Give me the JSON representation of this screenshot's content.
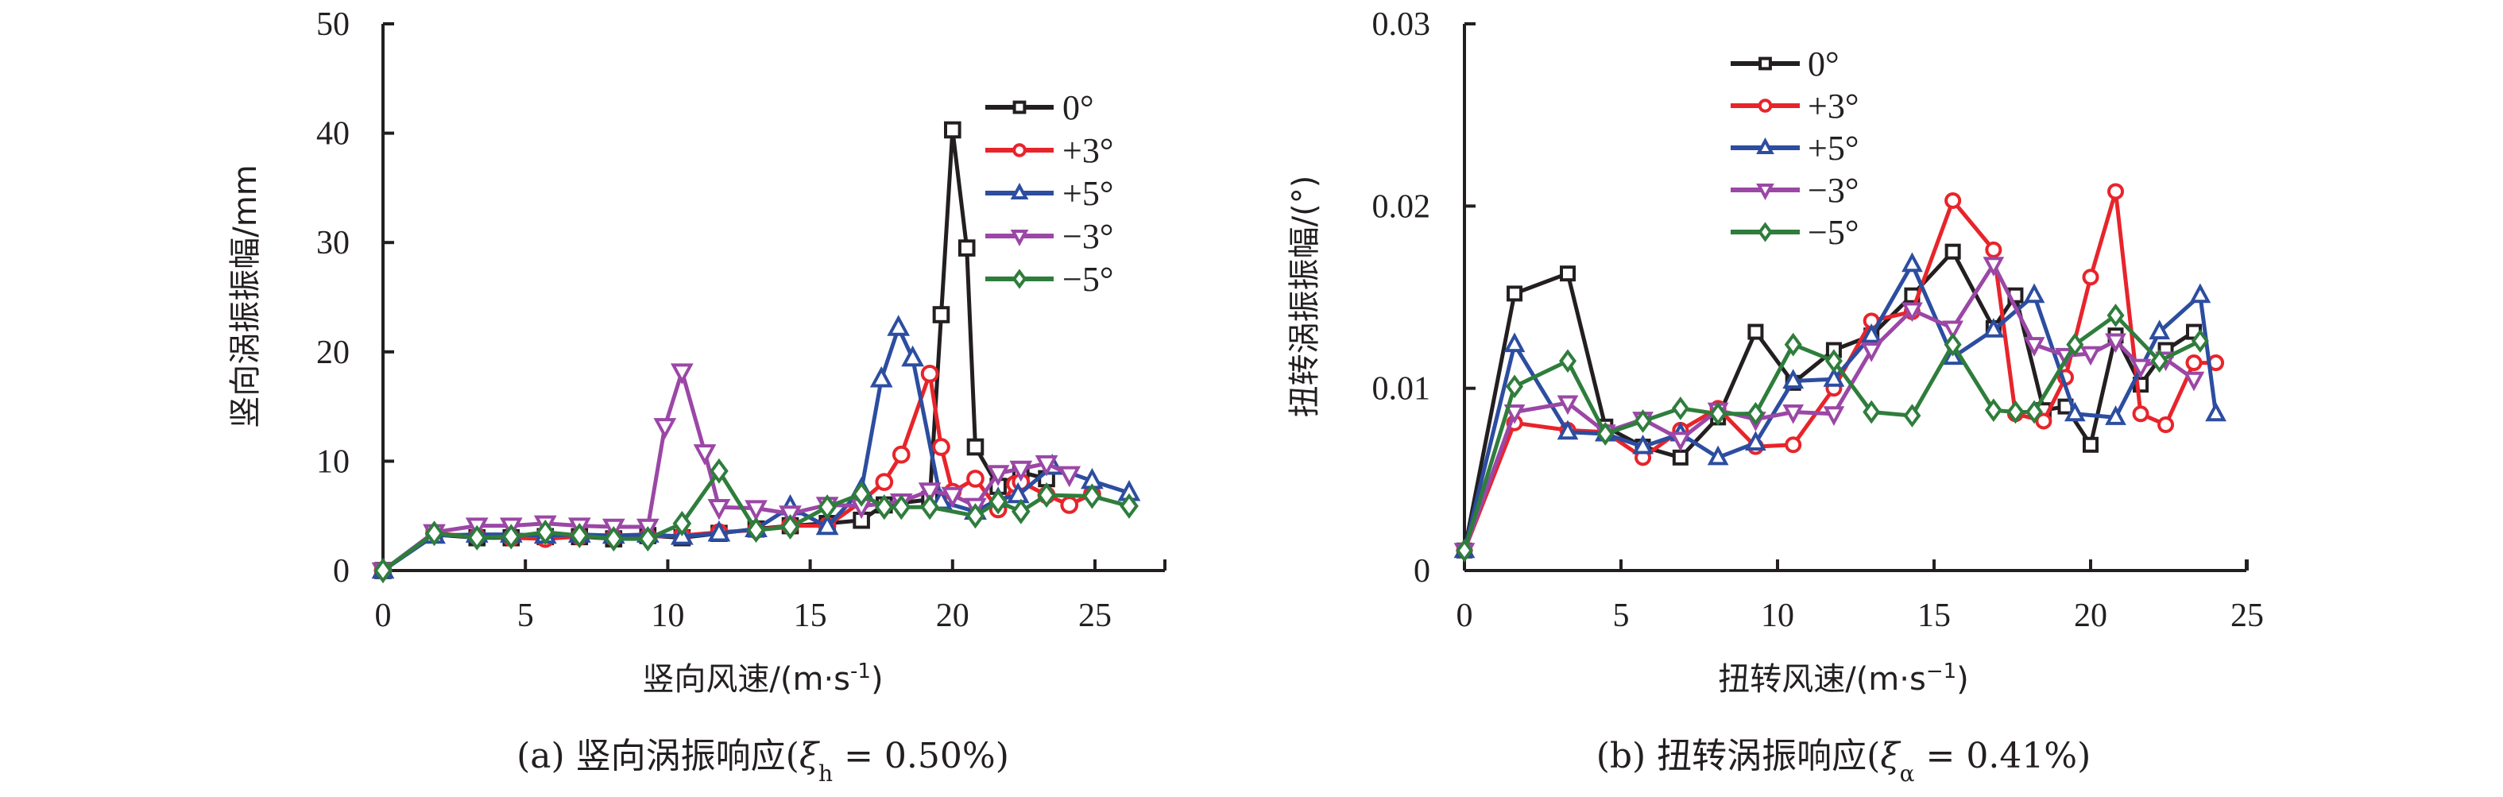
{
  "chart_data": [
    {
      "type": "line",
      "id": "vertical",
      "title": "",
      "caption": {
        "prefix": "(a) 竖向涡振响应(",
        "symbol": "ξ",
        "subscript": "h",
        "suffix": " = 0.50%)"
      },
      "xlabel": "竖向风速/(m·s",
      "xlabel_sup": "-1",
      "xlabel_close": ")",
      "ylabel": "竖向涡振振幅/mm",
      "xlim": [
        0,
        27.5
      ],
      "ylim": [
        0,
        50
      ],
      "xticks": [
        0,
        5,
        10,
        15,
        20,
        25
      ],
      "xtick_labels": [
        "0",
        "5",
        "10",
        "15",
        "20",
        "25"
      ],
      "yticks": [
        0,
        10,
        20,
        30,
        40,
        50
      ],
      "ytick_labels": [
        "0",
        "10",
        "20",
        "30",
        "40",
        "50"
      ],
      "grid": false,
      "legend_position": "upper-right",
      "series": [
        {
          "name": "0°",
          "color": "#231f20",
          "marker": "square",
          "x": [
            0,
            1.8,
            3.3,
            4.5,
            5.7,
            6.9,
            8.1,
            9.3,
            10.5,
            11.8,
            13.1,
            14.3,
            15.6,
            16.8,
            17.6,
            19.2,
            19.6,
            20.0,
            20.5,
            20.8,
            21.6,
            22.4,
            23.3
          ],
          "y": [
            0,
            3.3,
            3.0,
            3.0,
            3.1,
            3.1,
            2.9,
            3.2,
            3.0,
            3.4,
            3.8,
            4.1,
            4.3,
            4.6,
            6.0,
            6.5,
            23.4,
            40.3,
            29.5,
            11.3,
            7.7,
            9.0,
            8.4
          ]
        },
        {
          "name": "+3°",
          "color": "#e8242b",
          "marker": "circle",
          "x": [
            0,
            1.8,
            3.3,
            4.5,
            5.7,
            6.9,
            8.1,
            9.3,
            10.5,
            11.8,
            13.1,
            14.3,
            15.6,
            16.8,
            17.6,
            18.2,
            19.2,
            19.6,
            20.0,
            20.8,
            21.6,
            22.2,
            22.4,
            23.3,
            24.1,
            24.9
          ],
          "y": [
            0,
            3.4,
            3.1,
            3.0,
            2.9,
            3.1,
            3.0,
            3.1,
            3.2,
            3.5,
            3.7,
            4.1,
            4.1,
            6.3,
            8.1,
            10.6,
            18.0,
            11.3,
            7.2,
            8.4,
            5.6,
            7.9,
            8.1,
            6.9,
            6.0,
            7.0
          ]
        },
        {
          "name": "+5°",
          "color": "#2c4da0",
          "marker": "triangle-up",
          "x": [
            0,
            1.8,
            3.3,
            4.5,
            5.7,
            6.9,
            8.1,
            9.3,
            10.5,
            11.8,
            13.1,
            14.3,
            15.6,
            16.8,
            17.5,
            18.1,
            18.6,
            19.6,
            20.8,
            21.6,
            22.3,
            23.5,
            24.9,
            26.2
          ],
          "y": [
            0,
            3.2,
            3.3,
            3.3,
            3.2,
            3.3,
            3.2,
            3.3,
            3.1,
            3.4,
            3.8,
            5.8,
            4.0,
            7.4,
            17.5,
            22.2,
            19.4,
            6.3,
            5.4,
            6.5,
            6.9,
            9.5,
            8.2,
            7.1
          ]
        },
        {
          "name": "−3°",
          "color": "#9b47a6",
          "marker": "triangle-down",
          "x": [
            0,
            1.8,
            3.3,
            4.5,
            5.7,
            6.9,
            8.1,
            9.3,
            9.9,
            10.5,
            11.3,
            11.8,
            13.1,
            14.3,
            15.6,
            16.8,
            18.2,
            19.2,
            20.0,
            20.8,
            21.6,
            22.4,
            23.3,
            24.1
          ],
          "y": [
            0,
            3.5,
            4.1,
            4.1,
            4.3,
            4.1,
            4.0,
            4.0,
            13.2,
            18.2,
            10.8,
            5.8,
            5.7,
            5.2,
            6.0,
            5.9,
            6.3,
            7.3,
            6.9,
            5.9,
            8.9,
            9.3,
            9.8,
            8.8
          ]
        },
        {
          "name": "−5°",
          "color": "#2f7d3c",
          "marker": "diamond",
          "x": [
            0,
            1.8,
            3.3,
            4.5,
            5.7,
            6.9,
            8.1,
            9.3,
            10.5,
            11.8,
            13.1,
            14.3,
            15.6,
            16.8,
            17.6,
            18.2,
            19.2,
            20.8,
            21.6,
            22.4,
            23.3,
            24.9,
            26.2
          ],
          "y": [
            0,
            3.4,
            3.0,
            3.1,
            3.5,
            3.2,
            2.9,
            2.9,
            4.3,
            9.1,
            3.7,
            4.0,
            5.8,
            7.0,
            5.8,
            5.8,
            5.8,
            5.0,
            6.3,
            5.4,
            6.9,
            6.8,
            5.9
          ]
        }
      ]
    },
    {
      "type": "line",
      "id": "torsional",
      "title": "",
      "caption": {
        "prefix": "(b) 扭转涡振响应(",
        "symbol": "ξ",
        "subscript": "α",
        "suffix": " = 0.41%)"
      },
      "xlabel": "扭转风速/(m·s",
      "xlabel_sup": "−1",
      "xlabel_close": ")",
      "ylabel": "扭转涡振振幅/(°)",
      "xlim": [
        0,
        25
      ],
      "ylim": [
        0,
        0.03
      ],
      "xticks": [
        0,
        5,
        10,
        15,
        20,
        25
      ],
      "xtick_labels": [
        "0",
        "5",
        "10",
        "15",
        "20",
        "25"
      ],
      "yticks": [
        0,
        0.01,
        0.02,
        0.03
      ],
      "ytick_labels": [
        "0",
        "0.01",
        "0.02",
        "0.03"
      ],
      "grid": false,
      "legend_position": "upper-center",
      "series": [
        {
          "name": "0°",
          "color": "#231f20",
          "marker": "square",
          "x": [
            0,
            1.6,
            3.3,
            4.5,
            5.7,
            6.9,
            8.1,
            9.3,
            10.5,
            11.8,
            13.0,
            14.3,
            15.6,
            16.9,
            17.6,
            18.5,
            19.2,
            20.0,
            20.8,
            21.6,
            22.4,
            23.3
          ],
          "y": [
            0.0011,
            0.0152,
            0.0163,
            0.0079,
            0.0068,
            0.0062,
            0.0084,
            0.0131,
            0.0103,
            0.0121,
            0.0129,
            0.0151,
            0.0175,
            0.0133,
            0.0151,
            0.0088,
            0.009,
            0.0069,
            0.0129,
            0.0102,
            0.0121,
            0.0131
          ]
        },
        {
          "name": "+3°",
          "color": "#e8242b",
          "marker": "circle",
          "x": [
            0,
            1.6,
            3.3,
            4.5,
            5.7,
            6.9,
            8.1,
            9.3,
            10.5,
            11.8,
            13.0,
            14.3,
            15.6,
            16.9,
            17.6,
            18.5,
            19.2,
            20.0,
            20.8,
            21.6,
            22.4,
            23.3,
            24.0
          ],
          "y": [
            0.0011,
            0.0081,
            0.0077,
            0.0076,
            0.0062,
            0.0077,
            0.0089,
            0.0068,
            0.0069,
            0.01,
            0.0137,
            0.0142,
            0.0203,
            0.0176,
            0.0086,
            0.0082,
            0.0106,
            0.0161,
            0.0208,
            0.0086,
            0.008,
            0.0114,
            0.0114
          ]
        },
        {
          "name": "+5°",
          "color": "#2c4da0",
          "marker": "triangle-up",
          "x": [
            0,
            1.6,
            3.3,
            4.5,
            5.7,
            6.9,
            8.1,
            9.3,
            10.5,
            11.8,
            13.0,
            14.3,
            15.6,
            16.9,
            18.2,
            19.5,
            20.8,
            22.2,
            23.5,
            24.0
          ],
          "y": [
            0.0011,
            0.0124,
            0.0076,
            0.0075,
            0.0068,
            0.0075,
            0.0062,
            0.007,
            0.0104,
            0.0105,
            0.0129,
            0.0168,
            0.0117,
            0.0132,
            0.0151,
            0.0086,
            0.0084,
            0.0131,
            0.0151,
            0.0086
          ]
        },
        {
          "name": "−3°",
          "color": "#9b47a6",
          "marker": "triangle-down",
          "x": [
            0,
            1.6,
            3.3,
            4.5,
            5.7,
            6.9,
            8.1,
            9.3,
            10.5,
            11.8,
            13.0,
            14.3,
            15.6,
            16.9,
            18.2,
            19.2,
            20.0,
            20.8,
            21.6,
            22.4,
            23.3
          ],
          "y": [
            0.0011,
            0.0087,
            0.0092,
            0.0076,
            0.0083,
            0.0072,
            0.0088,
            0.0083,
            0.0087,
            0.0086,
            0.0121,
            0.0143,
            0.0133,
            0.0168,
            0.0124,
            0.0118,
            0.0119,
            0.0126,
            0.0112,
            0.0116,
            0.0105
          ]
        },
        {
          "name": "−5°",
          "color": "#2f7d3c",
          "marker": "diamond",
          "x": [
            0,
            1.6,
            3.3,
            4.5,
            5.7,
            6.9,
            8.1,
            9.3,
            10.5,
            11.8,
            13.0,
            14.3,
            15.6,
            16.9,
            17.6,
            18.2,
            19.5,
            20.8,
            22.2,
            23.5
          ],
          "y": [
            0.0011,
            0.0101,
            0.0115,
            0.0075,
            0.0082,
            0.0089,
            0.0086,
            0.0086,
            0.0124,
            0.0115,
            0.0087,
            0.0085,
            0.0124,
            0.0088,
            0.0087,
            0.0087,
            0.0124,
            0.014,
            0.0115,
            0.0126
          ]
        }
      ]
    }
  ]
}
